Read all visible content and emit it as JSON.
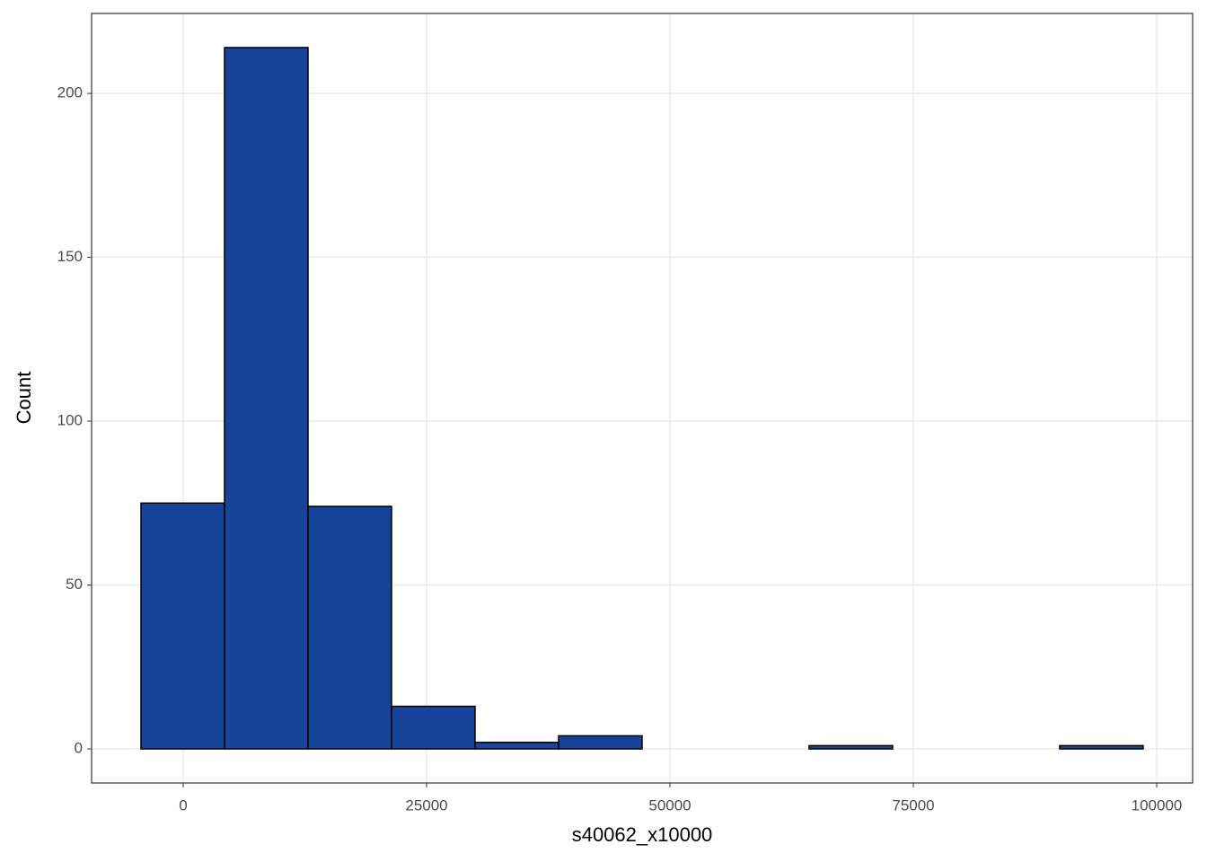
{
  "chart_data": {
    "type": "histogram",
    "x_label": "s40062_x10000",
    "y_label": "Count",
    "bins": [
      -4336,
      4243,
      12822,
      21401,
      29980,
      38559,
      47138,
      55717,
      64296,
      72875,
      81454,
      90033,
      98612
    ],
    "counts": [
      75,
      214,
      74,
      13,
      2,
      4,
      0,
      0,
      1,
      0,
      0,
      1
    ],
    "color": "#18439a",
    "xlim": [
      -9410,
      103690
    ],
    "ylim": [
      -10.4,
      224.4
    ],
    "xticks": [
      0,
      25000,
      50000,
      75000,
      100000
    ],
    "yticks": [
      0,
      50,
      100,
      150,
      200
    ],
    "grid": true
  }
}
